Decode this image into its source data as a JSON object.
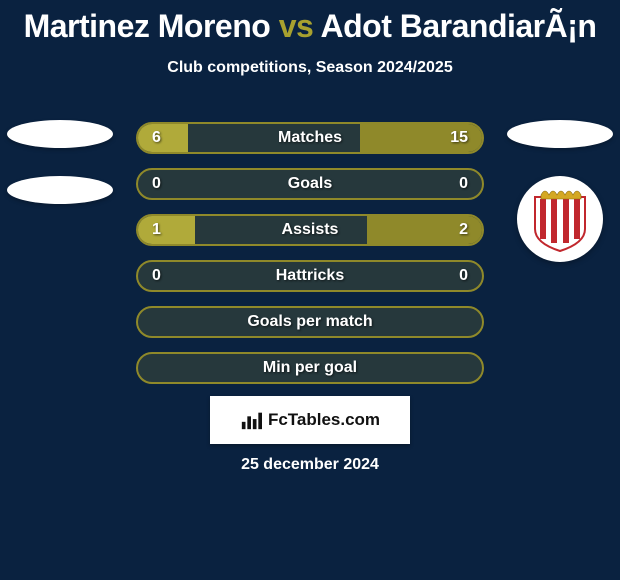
{
  "title": {
    "player_left": "Martinez Moreno",
    "vs": "vs",
    "player_right": "Adot BarandiarÃ¡n"
  },
  "subtitle": "Club competitions, Season 2024/2025",
  "colors": {
    "olive": "#a8a12f",
    "olive_border": "#8f892a",
    "white": "#ffffff",
    "bg": "#0a2240",
    "fill_left": "#b0aa3a",
    "fill_right": "#8f892a"
  },
  "rows": [
    {
      "label": "Matches",
      "left": "6",
      "right": "15",
      "left_pct": 29,
      "right_pct": 71
    },
    {
      "label": "Goals",
      "left": "0",
      "right": "0",
      "left_pct": 0,
      "right_pct": 0
    },
    {
      "label": "Assists",
      "left": "1",
      "right": "2",
      "left_pct": 33,
      "right_pct": 67
    },
    {
      "label": "Hattricks",
      "left": "0",
      "right": "0",
      "left_pct": 0,
      "right_pct": 0
    },
    {
      "label": "Goals per match",
      "left": "",
      "right": "",
      "left_pct": 0,
      "right_pct": 0
    },
    {
      "label": "Min per goal",
      "left": "",
      "right": "",
      "left_pct": 0,
      "right_pct": 0
    }
  ],
  "brand": "FcTables.com",
  "date": "25 december 2024",
  "badge_right": {
    "stripes": "#c1272d",
    "bg": "#ffffff",
    "crown": "#d4a823"
  }
}
